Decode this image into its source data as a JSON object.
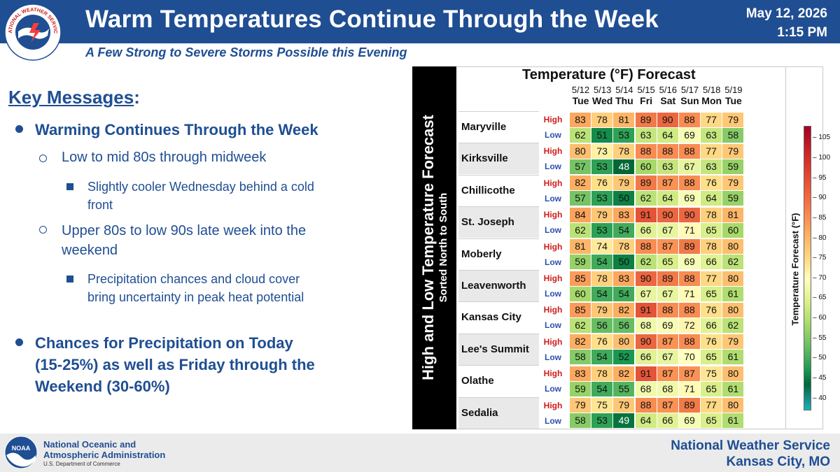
{
  "header": {
    "title": "Warm Temperatures Continue Through the Week",
    "subtitle": "A Few Strong to Severe Storms Possible this Evening",
    "date": "May 12, 2026",
    "time": "1:15 PM",
    "logo_text": "NATIONAL WEATHER SERVICE"
  },
  "key_messages": {
    "title": "Key Messages",
    "colon": ":",
    "b1": "Warming Continues Through the Week",
    "b1_1": "Low to mid 80s through midweek",
    "b1_1_1_line1": "Slightly cooler Wednesday behind a cold",
    "b1_1_1_line2": "front",
    "b1_2_line1": "Upper 80s to low 90s late week into the",
    "b1_2_line2": "weekend",
    "b1_2_1_line1": "Precipitation chances and cloud cover",
    "b1_2_1_line2": "bring uncertainty in peak heat potential",
    "b2_line1": "Chances for Precipitation on Today",
    "b2_line2": "(15-25%) as well as Friday through the",
    "b2_line3": "Weekend (30-60%)"
  },
  "forecast": {
    "side_label": "High and Low Temperature Forecast",
    "side_sublabel": "Sorted North to South",
    "title": "Temperature (°F) Forecast",
    "high_label": "High",
    "low_label": "Low",
    "days": [
      {
        "date": "5/12",
        "day": "Tue"
      },
      {
        "date": "5/13",
        "day": "Wed"
      },
      {
        "date": "5/14",
        "day": "Thu"
      },
      {
        "date": "5/15",
        "day": "Fri"
      },
      {
        "date": "5/16",
        "day": "Sat"
      },
      {
        "date": "5/17",
        "day": "Sun"
      },
      {
        "date": "5/18",
        "day": "Mon"
      },
      {
        "date": "5/19",
        "day": "Tue"
      }
    ],
    "cities": [
      {
        "name": "Maryville",
        "high": [
          83,
          78,
          81,
          89,
          90,
          88,
          77,
          79
        ],
        "low": [
          62,
          51,
          53,
          63,
          64,
          69,
          63,
          58
        ]
      },
      {
        "name": "Kirksville",
        "high": [
          80,
          73,
          78,
          88,
          88,
          88,
          77,
          79
        ],
        "low": [
          57,
          53,
          48,
          60,
          63,
          67,
          63,
          59
        ]
      },
      {
        "name": "Chillicothe",
        "high": [
          82,
          76,
          79,
          89,
          87,
          88,
          76,
          79
        ],
        "low": [
          57,
          53,
          50,
          62,
          64,
          69,
          64,
          59
        ]
      },
      {
        "name": "St. Joseph",
        "high": [
          84,
          79,
          83,
          91,
          90,
          90,
          78,
          81
        ],
        "low": [
          62,
          53,
          54,
          66,
          67,
          71,
          65,
          60
        ]
      },
      {
        "name": "Moberly",
        "high": [
          81,
          74,
          78,
          88,
          87,
          89,
          78,
          80
        ],
        "low": [
          59,
          54,
          50,
          62,
          65,
          69,
          66,
          62
        ]
      },
      {
        "name": "Leavenworth",
        "high": [
          85,
          78,
          83,
          90,
          89,
          88,
          77,
          80
        ],
        "low": [
          60,
          54,
          54,
          67,
          67,
          71,
          65,
          61
        ]
      },
      {
        "name": "Kansas City",
        "high": [
          85,
          79,
          82,
          91,
          88,
          88,
          76,
          80
        ],
        "low": [
          62,
          56,
          56,
          68,
          69,
          72,
          66,
          62
        ]
      },
      {
        "name": "Lee's Summit",
        "high": [
          82,
          76,
          80,
          90,
          87,
          88,
          76,
          79
        ],
        "low": [
          58,
          54,
          52,
          66,
          67,
          70,
          65,
          61
        ]
      },
      {
        "name": "Olathe",
        "high": [
          83,
          78,
          82,
          91,
          87,
          87,
          75,
          80
        ],
        "low": [
          59,
          54,
          55,
          68,
          68,
          71,
          65,
          61
        ]
      },
      {
        "name": "Sedalia",
        "high": [
          79,
          75,
          79,
          88,
          87,
          89,
          77,
          80
        ],
        "low": [
          58,
          53,
          49,
          64,
          66,
          69,
          65,
          61
        ]
      }
    ],
    "colorbar": {
      "label": "Temperature Forecast (°F)",
      "ticks": [
        "105",
        "100",
        "95",
        "90",
        "85",
        "80",
        "75",
        "70",
        "65",
        "60",
        "55",
        "50",
        "45",
        "40"
      ],
      "range": [
        37,
        108
      ]
    }
  },
  "footer": {
    "noaa_line1": "National Oceanic and",
    "noaa_line2": "Atmospheric Administration",
    "noaa_dept": "U.S. Department of Commerce",
    "noaa_logo_text": "NOAA",
    "nws_line1": "National Weather Service",
    "nws_line2": "Kansas City, MO"
  }
}
